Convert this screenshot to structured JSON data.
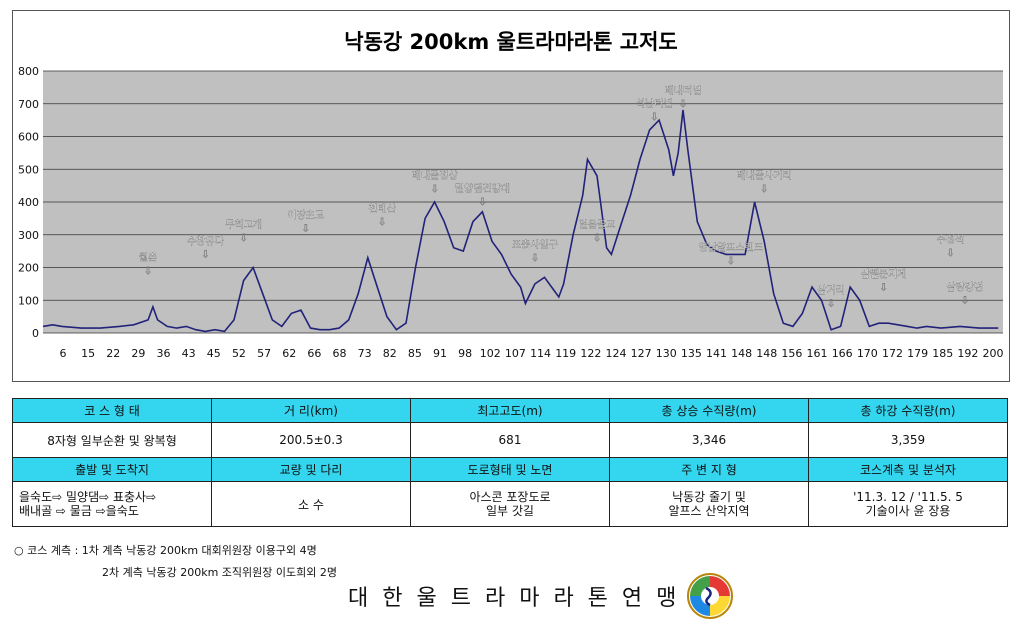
{
  "chart_data": {
    "type": "area",
    "title": "낙동강 200km 울트라마라톤 고저도",
    "ylim": [
      0,
      800
    ],
    "yticks": [
      0,
      100,
      200,
      300,
      400,
      500,
      600,
      700,
      800
    ],
    "xlim": [
      0,
      201
    ],
    "xticks": [
      "6",
      "15",
      "22",
      "29",
      "36",
      "43",
      "45",
      "52",
      "57",
      "62",
      "66",
      "68",
      "73",
      "82",
      "85",
      "91",
      "98",
      "102",
      "107",
      "114",
      "119",
      "122",
      "124",
      "127",
      "130",
      "135",
      "141",
      "148",
      "148",
      "156",
      "161",
      "166",
      "170",
      "172",
      "179",
      "185",
      "192",
      "200"
    ],
    "grid": true,
    "series": [
      {
        "x": [
          0,
          2,
          4,
          8,
          12,
          16,
          19,
          22,
          23,
          24,
          26,
          28,
          30,
          32,
          34,
          36,
          38,
          40,
          42,
          44,
          46,
          48,
          50,
          52,
          54,
          56,
          58,
          60,
          62,
          64,
          66,
          68,
          70,
          72,
          74,
          76,
          78,
          80,
          82,
          84,
          86,
          88,
          90,
          92,
          94,
          96,
          98,
          100,
          101,
          103,
          105,
          107,
          108,
          109,
          111,
          113,
          114,
          116,
          118,
          119,
          121,
          123,
          125,
          127,
          129,
          131,
          132,
          133,
          134,
          135,
          137,
          139,
          141,
          143,
          145,
          147,
          149,
          151,
          153,
          155,
          157,
          159,
          161,
          163,
          165,
          167,
          169,
          171,
          173,
          175,
          177,
          179,
          181,
          183,
          185,
          188,
          192,
          196,
          200
        ],
        "y": [
          20,
          25,
          20,
          15,
          15,
          20,
          25,
          40,
          80,
          40,
          20,
          15,
          20,
          10,
          5,
          10,
          5,
          40,
          160,
          200,
          120,
          40,
          20,
          60,
          70,
          15,
          10,
          10,
          15,
          40,
          120,
          230,
          140,
          50,
          10,
          30,
          200,
          350,
          400,
          340,
          260,
          250,
          340,
          370,
          280,
          240,
          180,
          140,
          90,
          150,
          170,
          130,
          110,
          150,
          300,
          420,
          530,
          480,
          260,
          240,
          330,
          420,
          530,
          620,
          650,
          560,
          480,
          550,
          681,
          560,
          340,
          270,
          250,
          240,
          240,
          240,
          400,
          280,
          120,
          30,
          20,
          60,
          140,
          100,
          10,
          20,
          140,
          100,
          20,
          30,
          30,
          25,
          20,
          15,
          20,
          15,
          20,
          15,
          15
        ]
      }
    ],
    "annotations": [
      "월촌",
      "수창유다",
      "무척고개",
      "이장초교",
      "천태산",
      "배내골정상",
      "밀양댐전망대",
      "표충사입구",
      "얼음골교",
      "석남터널",
      "배내터널",
      "배내골사거리",
      "영남알프스랜드",
      "삼거리",
      "삼쨈문지계",
      "수정석",
      "삼랑강변"
    ]
  },
  "table": {
    "headers1": [
      "코 스 형 태",
      "거 리(km)",
      "최고고도(m)",
      "총 상승 수직량(m)",
      "총 하강 수직량(m)"
    ],
    "row1": [
      "8자형 일부순환 및 왕복형",
      "200.5±0.3",
      "681",
      "3,346",
      "3,359"
    ],
    "headers2": [
      "출발 및 도착지",
      "교량 및 다리",
      "도로형태 및 노면",
      "주 변 지 형",
      "코스계측 및 분석자"
    ],
    "row2": [
      "을숙도⇨ 밀양댐⇨ 표충사⇨\n배내골 ⇨ 물금 ⇨을숙도",
      "소 수",
      "아스콘 포장도로\n일부 갓길",
      "낙동강 줄기 및\n알프스 산악지역",
      "'11.3. 12  / '11.5. 5\n기술이사 윤 장용"
    ]
  },
  "notes": {
    "line1": "○ 코스 계측 : 1차 계측 낙동강 200km 대회위원장 이용구외 4명",
    "line2": "2차 계측 낙동강 200km 조직위원장 이도희외 2명"
  },
  "footer": {
    "org": "대한울트라마라톤연맹"
  },
  "colors": {
    "plot_bg": "#c0c0c0",
    "line": "#22227a",
    "header_bg": "#33d6ee"
  }
}
